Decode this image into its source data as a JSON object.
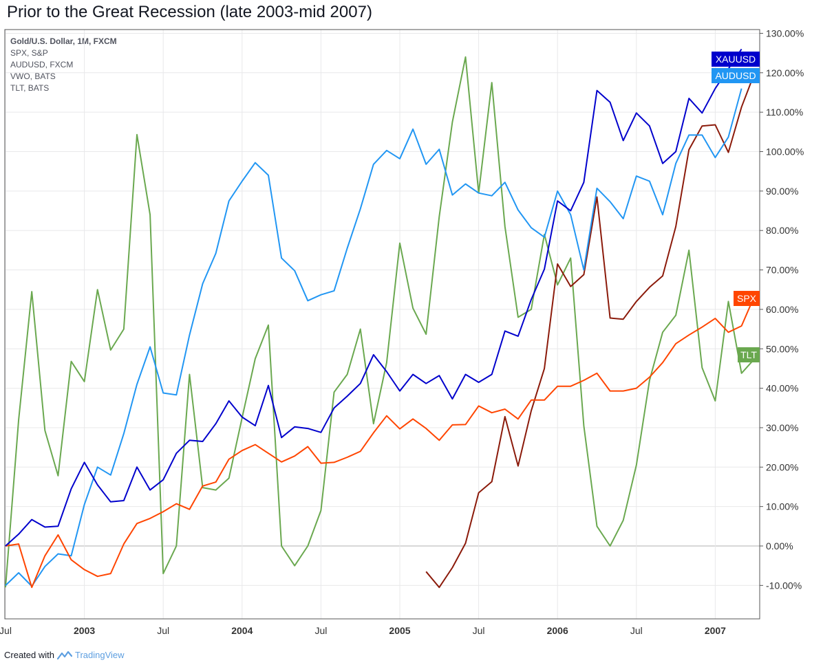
{
  "title": "Prior to the Great Recession (late 2003-mid 2007)",
  "legend": [
    "Gold/U.S. Dollar, 1M, FXCM",
    "SPX, S&P",
    "AUDUSD, FXCM",
    "VWO, BATS",
    "TLT, BATS"
  ],
  "footer": {
    "prefix": "Created with",
    "brand": "TradingView"
  },
  "colors": {
    "grid": "#e8e8ea",
    "axis": "#555555",
    "zero": "#b0b0b0"
  },
  "chart_data": {
    "type": "line",
    "x_ticks": [
      {
        "label": "Jul",
        "bold": false,
        "i": 0
      },
      {
        "label": "2003",
        "bold": true,
        "i": 6
      },
      {
        "label": "Jul",
        "bold": false,
        "i": 12
      },
      {
        "label": "2004",
        "bold": true,
        "i": 18
      },
      {
        "label": "Jul",
        "bold": false,
        "i": 24
      },
      {
        "label": "2005",
        "bold": true,
        "i": 30
      },
      {
        "label": "Jul",
        "bold": false,
        "i": 36
      },
      {
        "label": "2006",
        "bold": true,
        "i": 42
      },
      {
        "label": "Jul",
        "bold": false,
        "i": 48
      },
      {
        "label": "2007",
        "bold": true,
        "i": 54
      }
    ],
    "ylim": [
      -15,
      130
    ],
    "y_ticks": [
      -10,
      0,
      10,
      20,
      30,
      40,
      50,
      60,
      70,
      80,
      90,
      100,
      110,
      120,
      130
    ],
    "y_unit": "%",
    "series": [
      {
        "name": "XAUUSD",
        "color": "#0000cc",
        "start": 0,
        "values": [
          0,
          3,
          6.7,
          4.8,
          5,
          14.5,
          21.2,
          15.5,
          11.2,
          11.5,
          20,
          14.2,
          16.8,
          23.5,
          26.8,
          26.5,
          31,
          36.8,
          32.7,
          30.5,
          40.7,
          27.5,
          30.2,
          29.8,
          28.8,
          35,
          38,
          41.2,
          48.5,
          44.2,
          39.3,
          43.5,
          41.2,
          43.2,
          37.3,
          43.5,
          41.5,
          43.5,
          54.5,
          53.2,
          62.5,
          70.2,
          87.5,
          85,
          92.2,
          115.5,
          112.5,
          102.8,
          109.8,
          106.5,
          97,
          100,
          113.5,
          109.8,
          116,
          121,
          126
        ]
      },
      {
        "name": "AUDUSD",
        "color": "#2196f3",
        "start": 0,
        "values": [
          -10,
          -6.8,
          -10.2,
          -5.2,
          -2,
          -2.5,
          10.5,
          20,
          18,
          28.5,
          41,
          50.5,
          38.8,
          38.3,
          53.5,
          66.5,
          74.2,
          87.5,
          92.5,
          97.2,
          94,
          73,
          69.8,
          62.2,
          63.7,
          64.7,
          75.5,
          85.5,
          96.8,
          100.3,
          98.2,
          105.7,
          96.8,
          100.6,
          89,
          91.8,
          89.5,
          88.8,
          92.2,
          85.2,
          80.7,
          78.3,
          90,
          84,
          70,
          90.7,
          87.3,
          83,
          93.8,
          92.5,
          84,
          97,
          104.2,
          104.2,
          98.5,
          103.7,
          116
        ]
      },
      {
        "name": "SPX",
        "color": "#ff4500",
        "start": 0,
        "values": [
          0,
          0.5,
          -10.5,
          -2.5,
          2.8,
          -3.5,
          -6,
          -7.7,
          -7,
          0.5,
          5.7,
          7,
          8.7,
          10.7,
          9.3,
          15.2,
          16.2,
          22,
          24.2,
          25.7,
          23.5,
          21.3,
          22.8,
          25.2,
          21,
          21.2,
          22.5,
          24,
          28.7,
          33,
          29.7,
          32.2,
          29.8,
          26.8,
          30.7,
          30.8,
          35.5,
          33.8,
          34.7,
          32.2,
          37,
          37,
          40.5,
          40.5,
          42,
          43.8,
          39.3,
          39.3,
          40,
          42.8,
          46.5,
          51.3,
          53.5,
          55.5,
          57.7,
          54.2,
          55.8,
          63.5
        ]
      },
      {
        "name": "VWO",
        "color": "#8b1a0a",
        "start": 32,
        "values": [
          -6.5,
          -10.5,
          -5.5,
          0.7,
          13.5,
          16.3,
          32.8,
          20.3,
          34.3,
          45,
          71.5,
          65.8,
          68.8,
          88.5,
          57.8,
          57.5,
          62,
          65.6,
          68.5,
          81,
          100.5,
          106.5,
          106.8,
          99.8,
          111.3,
          120
        ]
      },
      {
        "name": "TLT",
        "color": "#6aa84f",
        "start": 0,
        "values": [
          -10.5,
          32,
          64.5,
          29.3,
          17.8,
          46.8,
          41.7,
          65,
          49.7,
          55,
          104.3,
          84,
          -7,
          0,
          43.5,
          14.8,
          14.2,
          17.2,
          32.5,
          47.5,
          56,
          0,
          -5,
          0,
          9,
          39,
          43.5,
          55,
          31,
          46.5,
          76.8,
          60.3,
          53.7,
          83.5,
          107.5,
          124,
          89.5,
          117.5,
          81,
          58,
          60,
          79,
          66.2,
          73,
          30.5,
          5,
          0,
          6.5,
          20.5,
          42,
          54.2,
          58.5,
          75,
          45.2,
          36.8,
          62,
          43.8,
          47.5
        ]
      }
    ]
  }
}
